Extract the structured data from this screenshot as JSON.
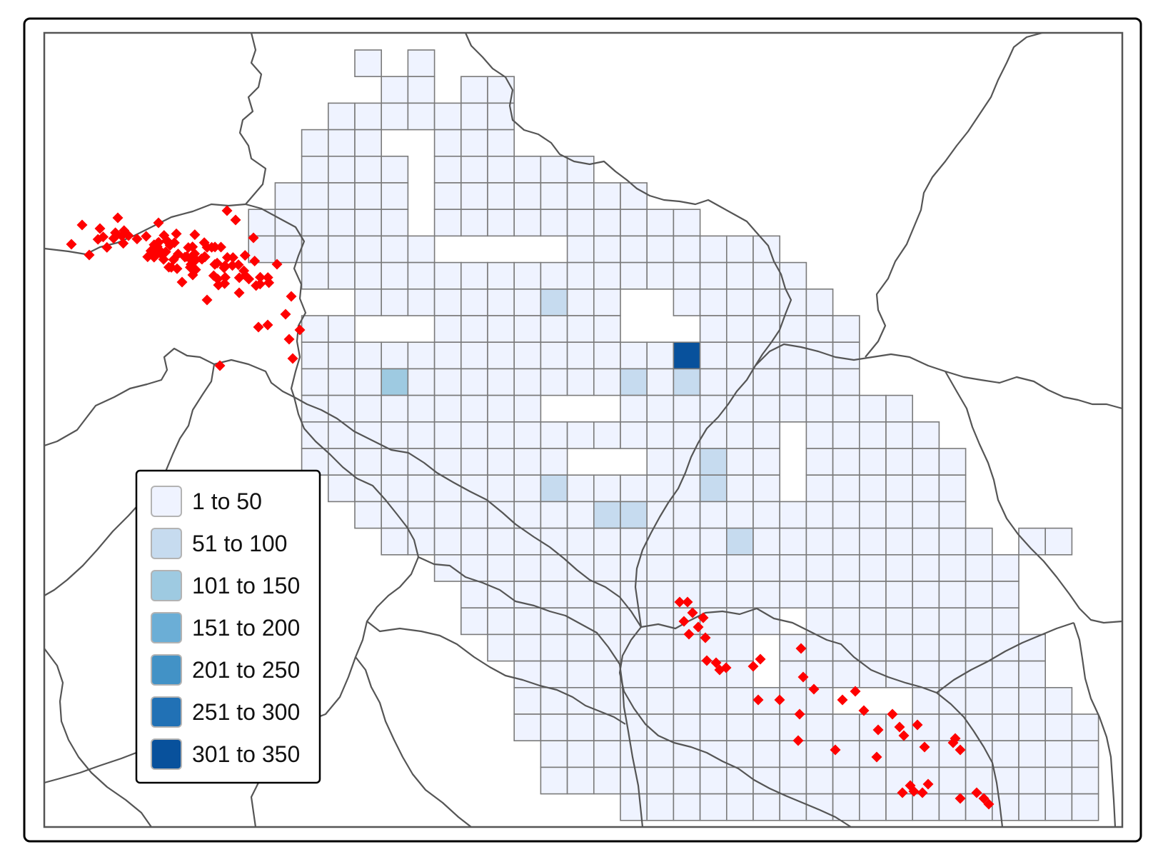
{
  "legend": {
    "items": [
      {
        "label": "1 to 50",
        "color": "#eff3ff"
      },
      {
        "label": "51 to 100",
        "color": "#c6dbef"
      },
      {
        "label": "101 to 150",
        "color": "#9ecae1"
      },
      {
        "label": "151 to 200",
        "color": "#6baed6"
      },
      {
        "label": "201 to 250",
        "color": "#4292c6"
      },
      {
        "label": "251 to 300",
        "color": "#2171b5"
      },
      {
        "label": "301 to 350",
        "color": "#08519c"
      }
    ]
  },
  "styles": {
    "grid_stroke": "#7a7a7a",
    "border_color": "#555555",
    "point_color": "#ff0000"
  }
}
